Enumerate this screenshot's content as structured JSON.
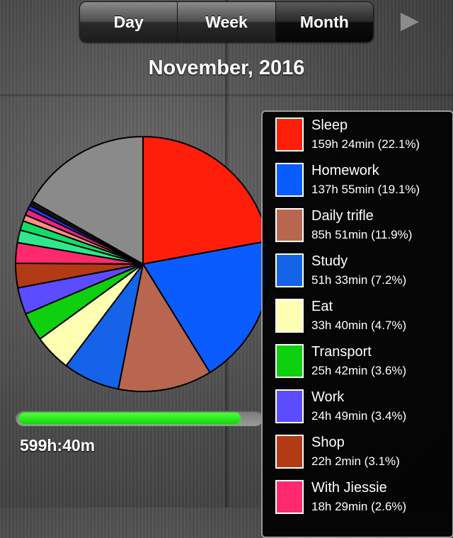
{
  "tabs": [
    {
      "label": "Day"
    },
    {
      "label": "Week"
    },
    {
      "label": "Month"
    }
  ],
  "selected_tab": "Month",
  "next_icon": "play-arrow-icon",
  "title": "November, 2016",
  "total": "599h:40m",
  "progress_fraction": 0.92,
  "chart_data": {
    "type": "pie",
    "slices": [
      {
        "label": "Sleep",
        "value": 22.1,
        "color": "#ff1e0a"
      },
      {
        "label": "Homework",
        "value": 19.1,
        "color": "#0a5cff"
      },
      {
        "label": "Daily trifle",
        "value": 11.9,
        "color": "#b86650"
      },
      {
        "label": "Study",
        "value": 7.2,
        "color": "#1563e8"
      },
      {
        "label": "Eat",
        "value": 4.7,
        "color": "#ffffb4"
      },
      {
        "label": "Transport",
        "value": 3.6,
        "color": "#0ed00e"
      },
      {
        "label": "Work",
        "value": 3.4,
        "color": "#5c4cff"
      },
      {
        "label": "Shop",
        "value": 3.1,
        "color": "#b23a14"
      },
      {
        "label": "With Jiessie",
        "value": 2.6,
        "color": "#ff2a6e"
      },
      {
        "label": "",
        "value": 1.6,
        "color": "#2ee88e"
      },
      {
        "label": "",
        "value": 1.2,
        "color": "#11dd66"
      },
      {
        "label": "",
        "value": 0.8,
        "color": "#ff8f80"
      },
      {
        "label": "",
        "value": 0.8,
        "color": "#ee2288"
      },
      {
        "label": "",
        "value": 0.5,
        "color": "#3333ee"
      },
      {
        "label": "",
        "value": 0.6,
        "color": "#151515"
      },
      {
        "label": "",
        "value": 16.8,
        "color": "#8a8a8a"
      }
    ]
  },
  "legend": [
    {
      "name": "Sleep",
      "value": "159h 24min (22.1%)",
      "color": "#ff1e0a"
    },
    {
      "name": "Homework",
      "value": "137h 55min (19.1%)",
      "color": "#0a5cff"
    },
    {
      "name": "Daily trifle",
      "value": "85h 51min (11.9%)",
      "color": "#b86650"
    },
    {
      "name": "Study",
      "value": "51h 33min (7.2%)",
      "color": "#1563e8"
    },
    {
      "name": "Eat",
      "value": "33h 40min (4.7%)",
      "color": "#ffffb4"
    },
    {
      "name": "Transport",
      "value": "25h 42min (3.6%)",
      "color": "#0ed00e"
    },
    {
      "name": "Work",
      "value": "24h 49min (3.4%)",
      "color": "#5c4cff"
    },
    {
      "name": "Shop",
      "value": "22h 2min (3.1%)",
      "color": "#b23a14"
    },
    {
      "name": "With Jiessie",
      "value": "18h 29min (2.6%)",
      "color": "#ff2a6e"
    }
  ]
}
